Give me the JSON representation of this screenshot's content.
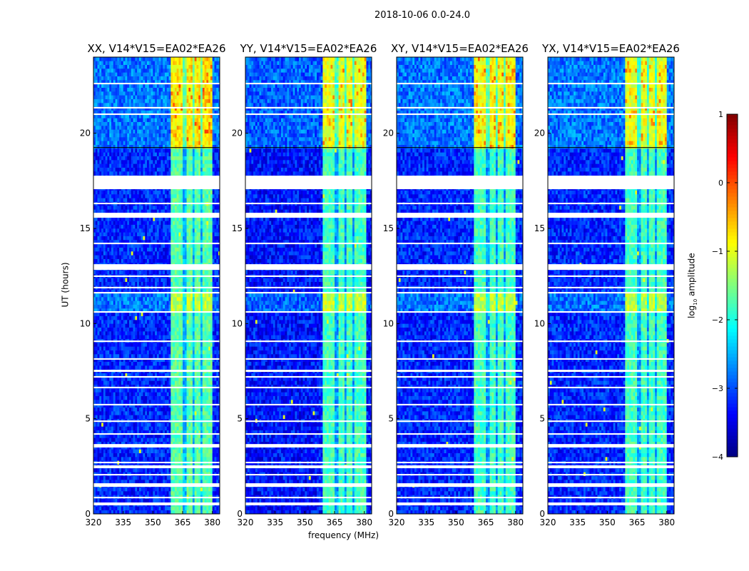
{
  "chart_data": {
    "type": "heatmap",
    "suptitle": "2018-10-06 0.0-24.0",
    "xlabel": "frequency (MHz)",
    "ylabel": "UT (hours)",
    "xlim": [
      320,
      383.7
    ],
    "ylim": [
      0,
      24
    ],
    "xticks": [
      "320",
      "335",
      "350",
      "365",
      "380"
    ],
    "xtick_values": [
      320,
      335,
      350,
      365,
      380
    ],
    "yticks": [
      "0",
      "5",
      "10",
      "15",
      "20"
    ],
    "ytick_values": [
      0,
      5,
      10,
      15,
      20
    ],
    "colorbar": {
      "label": "log10 amplitude",
      "label_main": "log",
      "label_sub": "10",
      "label_rest": " amplitude",
      "range": [
        -4,
        1
      ],
      "ticks": [
        "1",
        "0",
        "−1",
        "−2",
        "−3",
        "−4"
      ],
      "tick_values": [
        1,
        0,
        -1,
        -2,
        -3,
        -4
      ],
      "colormap": "jet"
    },
    "panels": [
      {
        "title": "XX, V14*V15=EA02*EA26",
        "band_mhz": [
          359.5,
          379.5
        ],
        "band_level_high": -0.8,
        "band_level_mid": -1.2,
        "band_level_low": -1.7,
        "background_level": -3.2
      },
      {
        "title": "YY, V14*V15=EA02*EA26",
        "band_mhz": [
          359.5,
          381.0
        ],
        "band_level_high": -1.0,
        "band_level_mid": -1.1,
        "band_level_low": -1.8,
        "background_level": -3.3
      },
      {
        "title": "XY, V14*V15=EA02*EA26",
        "band_mhz": [
          359.5,
          379.5
        ],
        "band_level_high": -0.9,
        "band_level_mid": -1.2,
        "band_level_low": -1.8,
        "background_level": -3.2
      },
      {
        "title": "YX, V14*V15=EA02*EA26",
        "band_mhz": [
          359.5,
          379.5
        ],
        "band_level_high": -1.0,
        "band_level_mid": -1.2,
        "band_level_low": -1.8,
        "background_level": -3.2
      }
    ],
    "band_dips_mhz": [
      366,
      370.5,
      374.5
    ],
    "high_activity_start_hour": 19.25,
    "mid_activity_hours": [
      10.6,
      11.5
    ],
    "flagged_hours": [
      [
        22.57,
        22.65
      ],
      [
        21.3,
        21.38
      ],
      [
        20.96,
        21.04
      ],
      [
        17.06,
        17.77
      ],
      [
        16.27,
        16.35
      ],
      [
        15.56,
        15.82
      ],
      [
        14.17,
        14.25
      ],
      [
        12.82,
        13.12
      ],
      [
        12.45,
        12.53
      ],
      [
        11.85,
        11.93
      ],
      [
        11.58,
        11.66
      ],
      [
        10.57,
        10.65
      ],
      [
        9.03,
        9.11
      ],
      [
        8.1,
        8.18
      ],
      [
        7.46,
        7.57
      ],
      [
        7.16,
        7.24
      ],
      [
        6.6,
        6.68
      ],
      [
        5.7,
        5.78
      ],
      [
        4.83,
        4.91
      ],
      [
        4.16,
        4.24
      ],
      [
        3.49,
        3.67
      ],
      [
        2.66,
        2.74
      ],
      [
        2.4,
        2.55
      ],
      [
        2.02,
        2.1
      ],
      [
        1.42,
        1.61
      ],
      [
        0.82,
        0.9
      ],
      [
        0.45,
        0.6
      ]
    ]
  }
}
